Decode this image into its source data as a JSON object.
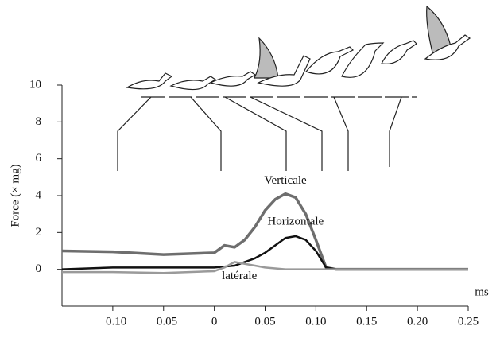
{
  "chart_data": {
    "type": "line",
    "x_label": "ms",
    "y_label": "Force (× mg)",
    "x": [
      -0.15,
      -0.1,
      -0.05,
      0,
      0.01,
      0.02,
      0.03,
      0.04,
      0.05,
      0.06,
      0.07,
      0.08,
      0.09,
      0.1,
      0.11,
      0.12,
      0.25
    ],
    "series": [
      {
        "name": "Verticale",
        "color": "#6e6e6e",
        "values": [
          1.0,
          0.95,
          0.8,
          0.9,
          1.3,
          1.2,
          1.6,
          2.3,
          3.2,
          3.8,
          4.1,
          3.9,
          3.0,
          1.6,
          0.1,
          0,
          0
        ]
      },
      {
        "name": "Horizontale",
        "color": "#111111",
        "values": [
          0,
          0.1,
          0.1,
          0.1,
          0.15,
          0.2,
          0.4,
          0.6,
          0.9,
          1.3,
          1.7,
          1.8,
          1.6,
          1.0,
          0.1,
          0,
          0
        ]
      },
      {
        "name": "latérale",
        "color": "#9a9a9a",
        "values": [
          -0.15,
          -0.15,
          -0.2,
          -0.1,
          0.1,
          0.4,
          0.3,
          0.2,
          0.1,
          0.05,
          0,
          0,
          0,
          0,
          0,
          0,
          0
        ]
      }
    ],
    "hline": {
      "value": 1,
      "style": "dashed"
    },
    "xlim": [
      -0.15,
      0.25
    ],
    "ylim": [
      -2,
      10
    ],
    "xticks": [
      {
        "value": -0.1,
        "label": "−0.10"
      },
      {
        "value": -0.05,
        "label": "−0.05"
      },
      0,
      0.05,
      {
        "value": 0.1,
        "label": "0.10"
      },
      0.15,
      {
        "value": 0.2,
        "label": "0.20"
      },
      0.25
    ],
    "yticks": [
      0,
      2,
      4,
      6,
      8,
      10
    ]
  }
}
